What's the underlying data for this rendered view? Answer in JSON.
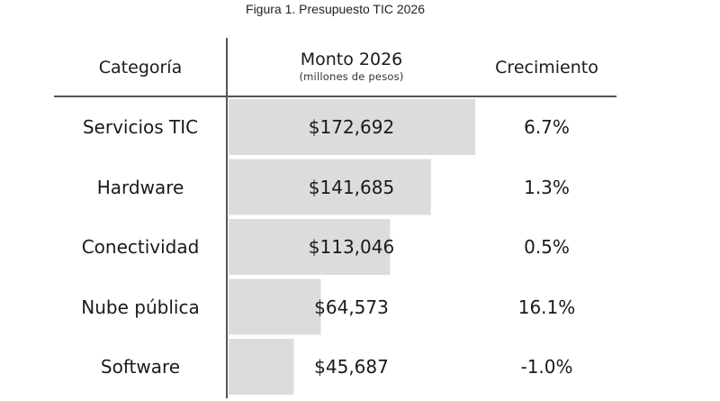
{
  "figure": {
    "caption": "Figura 1. Presupuesto TIC 2026"
  },
  "headers": {
    "category": "Categoría",
    "amount": "Monto 2026",
    "amount_sub": "(millones de pesos)",
    "growth": "Crecimiento"
  },
  "chart_data": {
    "type": "bar",
    "title": "Figura 1. Presupuesto TIC 2026",
    "orientation": "horizontal",
    "categories": [
      "Servicios TIC",
      "Hardware",
      "Conectividad",
      "Nube pública",
      "Software"
    ],
    "series": [
      {
        "name": "Monto 2026",
        "values": [
          172692,
          141685,
          113046,
          64573,
          45687
        ]
      }
    ],
    "value_labels": [
      "$172,692",
      "$141,685",
      "$113,046",
      "$64,573",
      "$45,687"
    ],
    "growth_labels": [
      "6.7%",
      "1.3%",
      "0.5%",
      "16.1%",
      "-1.0%"
    ],
    "bar_color": "#dcdcdc",
    "grid": false
  }
}
